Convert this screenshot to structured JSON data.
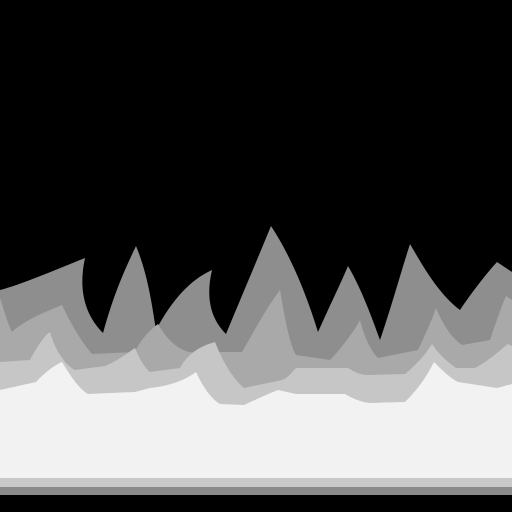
{
  "colors": {
    "background": "#000000",
    "flame_back": "#8e8e8e",
    "flame_mid": "#a9a9a9",
    "flame_front": "#c6c6c6",
    "ground": "#f2f2f2",
    "base_stripe_light": "#c9c9c9",
    "base_stripe_dark": "#8a8a8a"
  },
  "icons": {
    "flames": "fire-flames-graphic"
  }
}
